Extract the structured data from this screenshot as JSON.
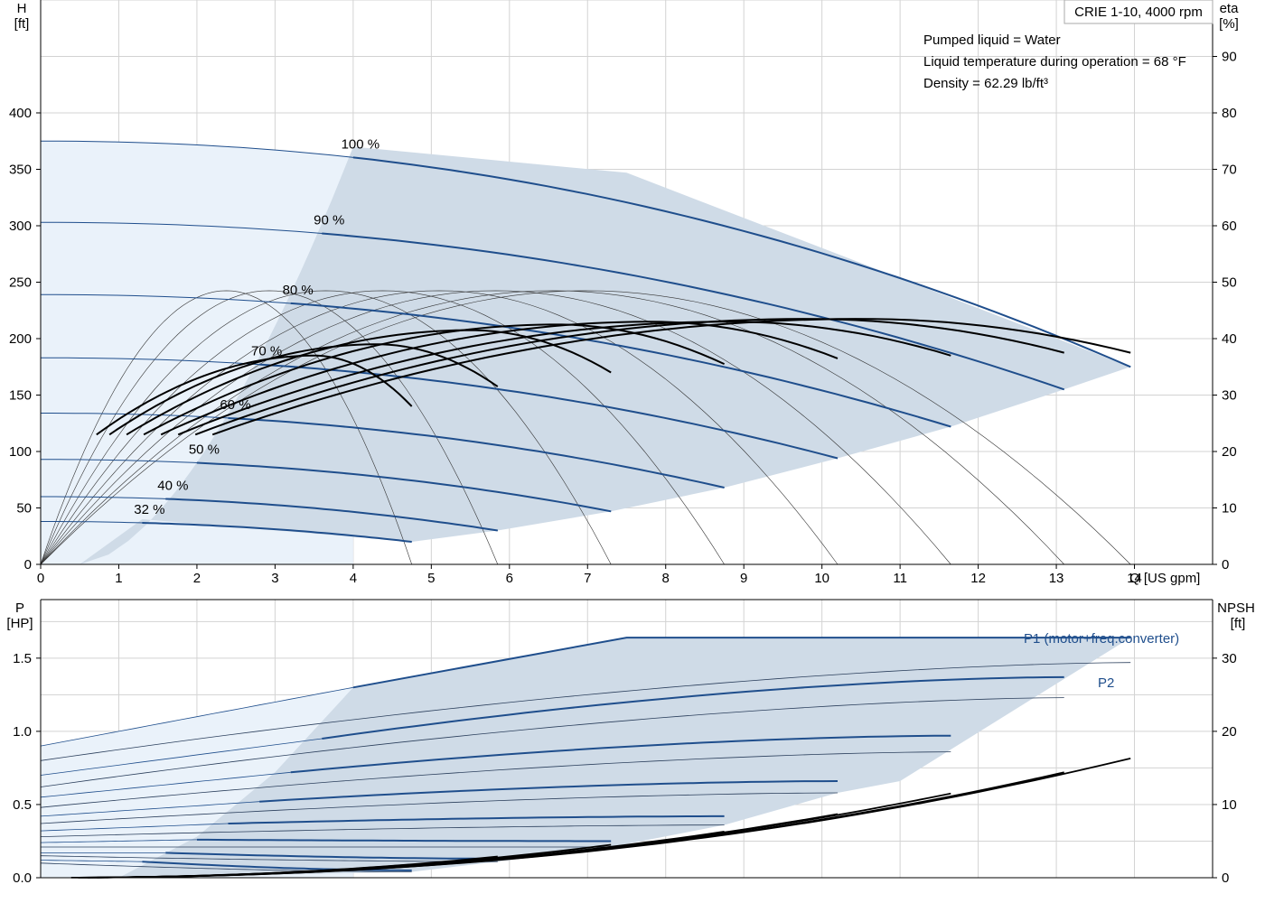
{
  "chart_data": [
    {
      "type": "line",
      "panel": "head-efficiency",
      "title": "CRIE 1-10, 4000 rpm",
      "xlabel": "Q [US gpm]",
      "ylabel_left_name": "H",
      "ylabel_left_unit": "[ft]",
      "ylabel_right_name": "eta",
      "ylabel_right_unit": "[%]",
      "xlim": [
        0,
        15
      ],
      "ylim_left": [
        0,
        500
      ],
      "ylim_right": [
        0,
        100
      ],
      "grid": true,
      "x_ticks": [
        0,
        1,
        2,
        3,
        4,
        5,
        6,
        7,
        8,
        9,
        10,
        11,
        12,
        13,
        14
      ],
      "y_left_ticks": [
        0,
        50,
        100,
        150,
        200,
        250,
        300,
        350,
        400
      ],
      "y_right_ticks": [
        0,
        10,
        20,
        30,
        40,
        50,
        60,
        70,
        80,
        90
      ],
      "annotations": [
        "Pumped liquid = Water",
        "Liquid temperature during operation = 68 °F",
        "Density = 62.29 lb/ft³"
      ],
      "operating_area": {
        "upper": [
          [
            4.0,
            370
          ],
          [
            7.5,
            347
          ],
          [
            13.95,
            175
          ]
        ],
        "lower": [
          [
            0.5,
            0
          ],
          [
            1.3,
            40
          ],
          [
            4.75,
            20
          ],
          [
            5.85,
            30
          ],
          [
            7.3,
            47
          ],
          [
            8.75,
            68
          ],
          [
            10.2,
            94
          ],
          [
            11.65,
            122
          ],
          [
            13.1,
            155
          ],
          [
            13.95,
            175
          ]
        ]
      },
      "series": [
        {
          "name": "100 %",
          "h0": 375,
          "qmax": 13.95,
          "qmin_region": 4.0,
          "hend": 175
        },
        {
          "name": "90 %",
          "h0": 303,
          "qmax": 13.1,
          "qmin_region": 3.6,
          "hend": 155
        },
        {
          "name": "80 %",
          "h0": 239,
          "qmax": 11.65,
          "qmin_region": 3.2,
          "hend": 122
        },
        {
          "name": "70 %",
          "h0": 183,
          "qmax": 10.2,
          "qmin_region": 2.8,
          "hend": 94
        },
        {
          "name": "60 %",
          "h0": 134,
          "qmax": 8.75,
          "qmin_region": 2.4,
          "hend": 68
        },
        {
          "name": "50 %",
          "h0": 93,
          "qmax": 7.3,
          "qmin_region": 2.0,
          "hend": 47
        },
        {
          "name": "40 %",
          "h0": 60,
          "qmax": 5.85,
          "qmin_region": 1.6,
          "hend": 30
        },
        {
          "name": "32 %",
          "h0": 38,
          "qmax": 4.75,
          "qmin_region": 1.3,
          "hend": 20
        }
      ],
      "efficiency_series": [
        {
          "qmax": 13.95,
          "eta_peak": 43.5,
          "q_peak": 10.5,
          "eta_end": 37.5
        },
        {
          "qmax": 13.1,
          "eta_peak": 43.5,
          "q_peak": 9.8,
          "eta_end": 37.5
        },
        {
          "qmax": 11.65,
          "eta_peak": 43.0,
          "q_peak": 8.8,
          "eta_end": 37.0
        },
        {
          "qmax": 10.2,
          "eta_peak": 43.0,
          "q_peak": 7.8,
          "eta_end": 36.5
        },
        {
          "qmax": 8.75,
          "eta_peak": 42.5,
          "q_peak": 6.6,
          "eta_end": 35.5
        },
        {
          "qmax": 7.3,
          "eta_peak": 41.5,
          "q_peak": 5.5,
          "eta_end": 34.0
        },
        {
          "qmax": 5.85,
          "eta_peak": 39.0,
          "q_peak": 4.3,
          "eta_end": 31.5
        },
        {
          "qmax": 4.75,
          "eta_peak": 37.0,
          "q_peak": 3.5,
          "eta_end": 28.0
        }
      ]
    },
    {
      "type": "line",
      "panel": "power-npsh",
      "xlabel": "",
      "ylabel_left_name": "P",
      "ylabel_left_unit": "[HP]",
      "ylabel_right_name": "NPSH",
      "ylabel_right_unit": "[ft]",
      "xlim": [
        0,
        15
      ],
      "ylim_left": [
        0,
        1.9
      ],
      "ylim_right": [
        0,
        38
      ],
      "grid": true,
      "y_left_ticks": [
        0.0,
        0.5,
        1.0,
        1.5
      ],
      "y_left_tick_labels": [
        "0.0",
        "0.5",
        "1.0",
        "1.5"
      ],
      "y_right_ticks": [
        0,
        10,
        20,
        30
      ],
      "series_labels": [
        "P1 (motor+freq.converter)",
        "P2"
      ],
      "p1_curves": [
        {
          "p0": 0.9,
          "q_region": 4.0,
          "p_region": 1.3,
          "qmax": 13.95,
          "pmax": 1.64
        },
        {
          "p0": 0.7,
          "q_region": 3.6,
          "p_region": 0.95,
          "qmax": 13.1,
          "pmax": 1.37
        },
        {
          "p0": 0.55,
          "q_region": 3.2,
          "p_region": 0.72,
          "qmax": 11.65,
          "pmax": 0.97
        },
        {
          "p0": 0.42,
          "q_region": 2.8,
          "p_region": 0.52,
          "qmax": 10.2,
          "pmax": 0.66
        },
        {
          "p0": 0.32,
          "q_region": 2.4,
          "p_region": 0.37,
          "qmax": 8.75,
          "pmax": 0.42
        },
        {
          "p0": 0.24,
          "q_region": 2.0,
          "p_region": 0.26,
          "qmax": 7.3,
          "pmax": 0.25
        },
        {
          "p0": 0.17,
          "q_region": 1.6,
          "p_region": 0.17,
          "qmax": 5.85,
          "pmax": 0.13
        },
        {
          "p0": 0.12,
          "q_region": 1.3,
          "p_region": 0.11,
          "qmax": 4.75,
          "pmax": 0.05
        }
      ],
      "p2_curves": [
        {
          "p0": 0.8,
          "qmax": 13.95,
          "pmax": 1.47
        },
        {
          "p0": 0.62,
          "qmax": 13.1,
          "pmax": 1.23
        },
        {
          "p0": 0.48,
          "qmax": 11.65,
          "pmax": 0.86
        },
        {
          "p0": 0.37,
          "qmax": 10.2,
          "pmax": 0.58
        },
        {
          "p0": 0.28,
          "qmax": 8.75,
          "pmax": 0.36
        },
        {
          "p0": 0.21,
          "qmax": 7.3,
          "pmax": 0.21
        },
        {
          "p0": 0.15,
          "qmax": 5.85,
          "pmax": 0.11
        },
        {
          "p0": 0.1,
          "qmax": 4.75,
          "pmax": 0.04
        }
      ],
      "npsh_curves": [
        {
          "qstart": 4.0,
          "qmax": 13.95,
          "nmax": 16.3
        },
        {
          "qstart": 3.6,
          "qmax": 13.1,
          "nmax": 14.4
        },
        {
          "qstart": 3.2,
          "qmax": 11.65,
          "nmax": 11.5
        },
        {
          "qstart": 2.8,
          "qmax": 10.2,
          "nmax": 8.7
        },
        {
          "qstart": 2.4,
          "qmax": 8.75,
          "nmax": 6.3
        },
        {
          "qstart": 2.0,
          "qmax": 7.3,
          "nmax": 4.5
        },
        {
          "qstart": 1.6,
          "qmax": 5.85,
          "nmax": 2.9
        },
        {
          "qstart": 1.3,
          "qmax": 4.75,
          "nmax": 1.8
        }
      ]
    }
  ]
}
